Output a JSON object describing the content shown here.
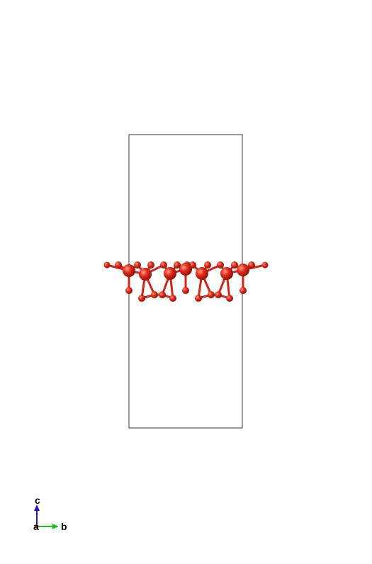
{
  "structure": {
    "atom_color": "#e02a1a",
    "atom_highlight": "#ff8a70",
    "atom_shadow": "#9a1208",
    "bond_color": "#d42418",
    "cell_line_color": "#333333"
  },
  "axes": {
    "c_label": "c",
    "a_label": "a",
    "b_label": "b",
    "c_color": "#1a1acc",
    "b_color": "#22bb22",
    "a_color": "#cc2222"
  }
}
